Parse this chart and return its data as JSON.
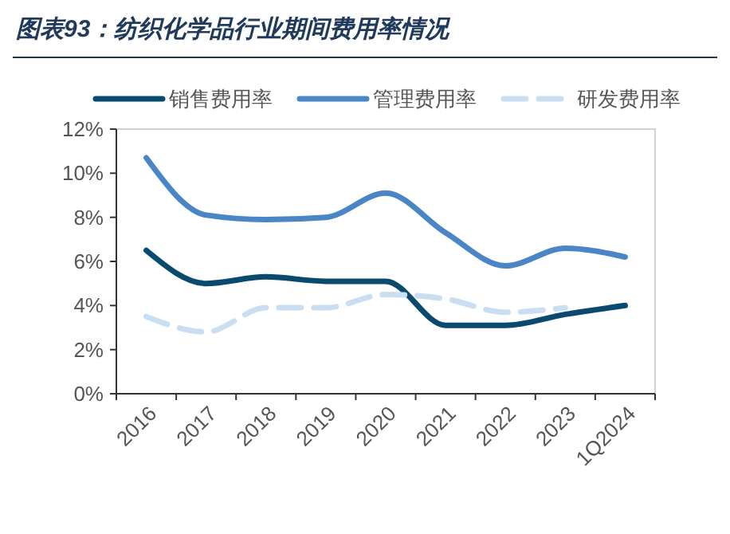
{
  "chart_data": {
    "type": "line",
    "title": "图表93：纺织化学品行业期间费用率情况",
    "categories": [
      "2016",
      "2017",
      "2018",
      "2019",
      "2020",
      "2021",
      "2022",
      "2023",
      "1Q2024"
    ],
    "series": [
      {
        "name": "销售费用率",
        "color": "#0b4a6f",
        "values": [
          6.5,
          5.0,
          5.3,
          5.1,
          5.1,
          3.1,
          3.1,
          3.6,
          4.0
        ]
      },
      {
        "name": "管理费用率",
        "color": "#4a86c5",
        "values": [
          10.7,
          8.1,
          7.9,
          8.0,
          9.1,
          7.3,
          5.8,
          6.6,
          6.2
        ]
      },
      {
        "name": "研发费用率",
        "color": "#c9dff1",
        "line_style": "dashed",
        "values": [
          3.5,
          2.8,
          3.9,
          3.9,
          4.5,
          4.3,
          3.7,
          3.9,
          null
        ]
      }
    ],
    "ylim": [
      0,
      12
    ],
    "yticks": [
      {
        "value": 0,
        "label": "0%"
      },
      {
        "value": 2,
        "label": "2%"
      },
      {
        "value": 4,
        "label": "4%"
      },
      {
        "value": 6,
        "label": "6%"
      },
      {
        "value": 8,
        "label": "8%"
      },
      {
        "value": 10,
        "label": "10%"
      },
      {
        "value": 12,
        "label": "12%"
      }
    ],
    "grid": false,
    "legend": "top",
    "marker": "none",
    "line_style": "solid"
  }
}
